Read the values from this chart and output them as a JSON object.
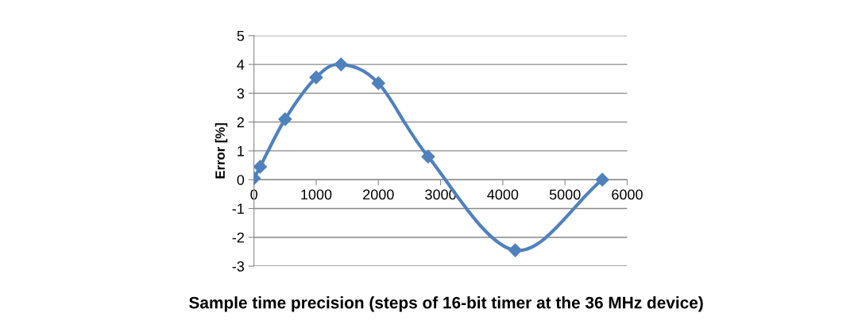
{
  "chart_data": {
    "type": "line",
    "xlabel": "Sample time precision (steps of 16-bit timer at the 36 MHz device)",
    "ylabel": "Error [%]",
    "x": [
      0,
      100,
      500,
      1000,
      1400,
      2000,
      2800,
      4200,
      5600
    ],
    "series": [
      {
        "color": "#4f81bd",
        "values": [
          0.05,
          0.45,
          2.1,
          3.55,
          4.0,
          3.35,
          0.8,
          -2.45,
          0
        ]
      }
    ],
    "xlim": [
      0,
      6000
    ],
    "xticks": [
      0,
      1000,
      2000,
      3000,
      4000,
      5000,
      6000
    ],
    "ylim": [
      -3,
      5
    ],
    "yticks": [
      -3,
      -2,
      -1,
      0,
      1,
      2,
      3,
      4,
      5
    ],
    "grid": "y",
    "marker": "diamond",
    "line_style": "solid",
    "legend": false
  }
}
